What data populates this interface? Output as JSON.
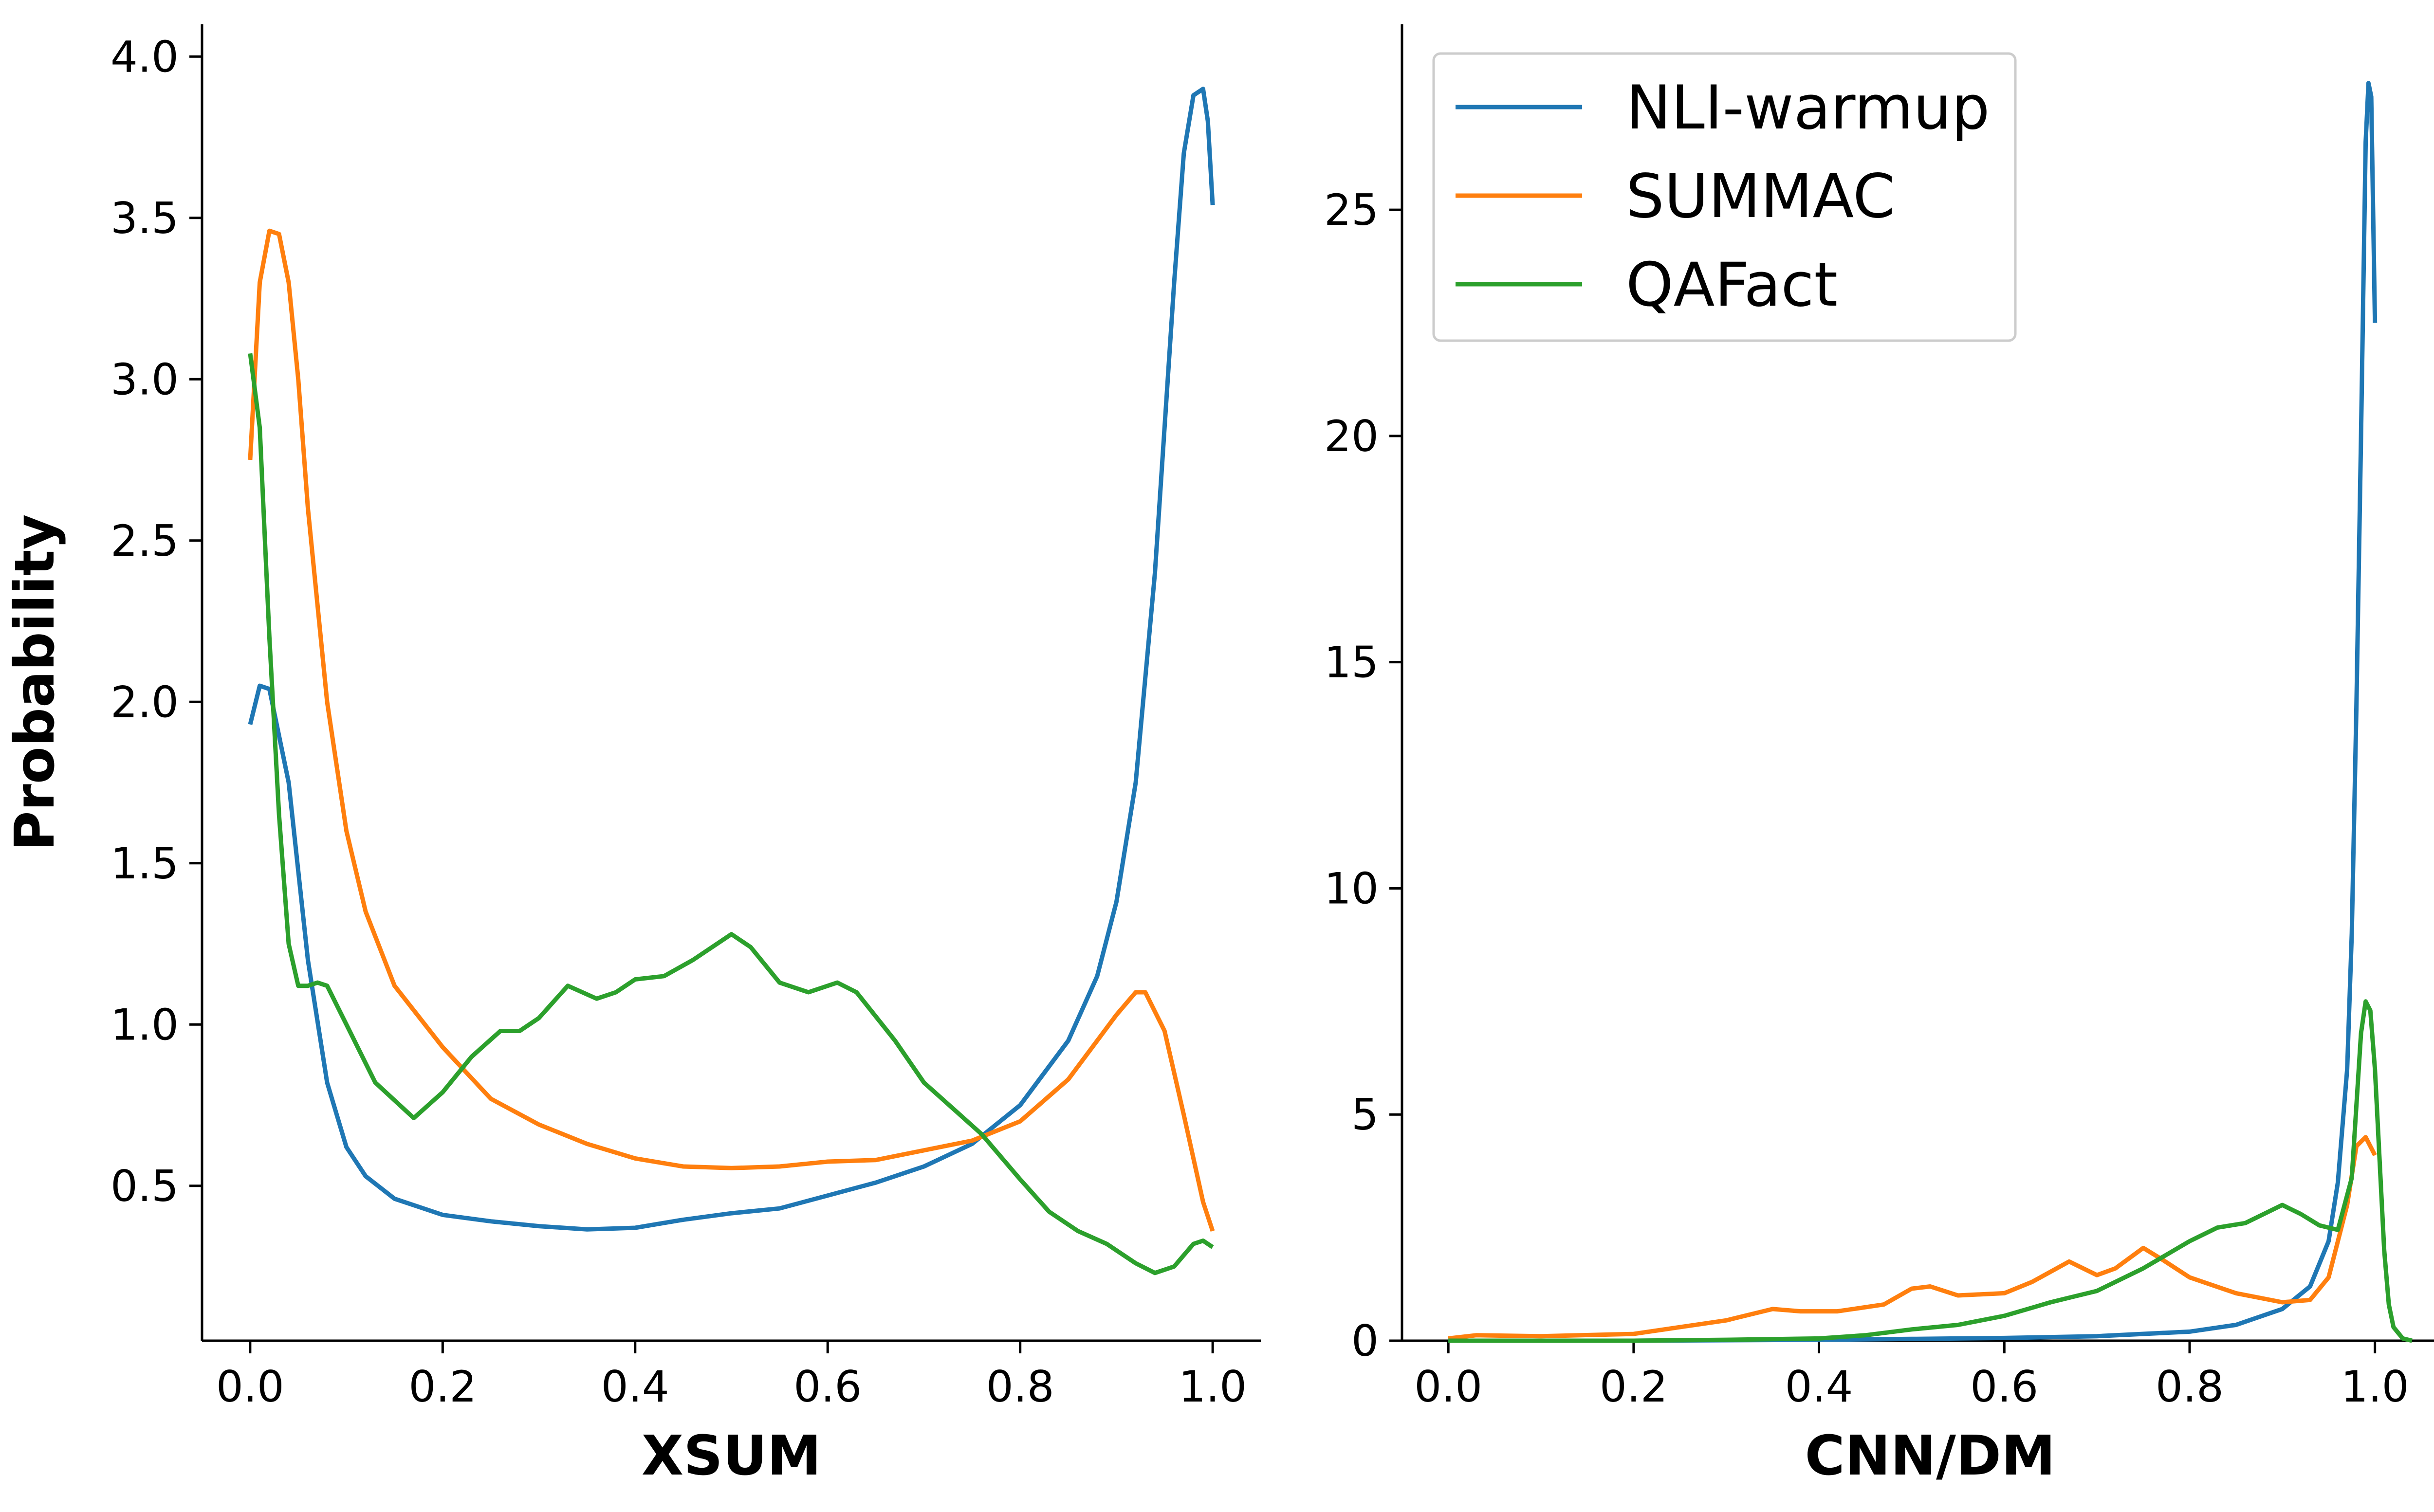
{
  "legend": {
    "placement": "top-left of right panel",
    "entries": [
      {
        "name": "NLI-warmup",
        "color": "#1f77b4"
      },
      {
        "name": "SUMMAC",
        "color": "#ff7f0e"
      },
      {
        "name": "QAFact",
        "color": "#2ca02c"
      }
    ]
  },
  "chart_data": [
    {
      "type": "line",
      "xlabel": "XSUM",
      "ylabel": "Probability",
      "xlim": [
        -0.05,
        1.05
      ],
      "ylim": [
        0.02,
        4.1
      ],
      "xticks": [
        "0.0",
        "0.2",
        "0.4",
        "0.6",
        "0.8",
        "1.0"
      ],
      "xtick_values": [
        0.0,
        0.2,
        0.4,
        0.6,
        0.8,
        1.0
      ],
      "yticks": [
        "0.5",
        "1.0",
        "1.5",
        "2.0",
        "2.5",
        "3.0",
        "3.5",
        "4.0"
      ],
      "ytick_values": [
        0.5,
        1.0,
        1.5,
        2.0,
        2.5,
        3.0,
        3.5,
        4.0
      ],
      "series": [
        {
          "name": "NLI-warmup",
          "color": "#1f77b4",
          "x": [
            0.0,
            0.01,
            0.02,
            0.04,
            0.06,
            0.08,
            0.1,
            0.12,
            0.15,
            0.2,
            0.25,
            0.3,
            0.35,
            0.4,
            0.45,
            0.5,
            0.55,
            0.6,
            0.65,
            0.7,
            0.75,
            0.8,
            0.85,
            0.88,
            0.9,
            0.92,
            0.94,
            0.96,
            0.97,
            0.98,
            0.99,
            0.995,
            1.0
          ],
          "y": [
            1.93,
            2.05,
            2.04,
            1.75,
            1.2,
            0.82,
            0.62,
            0.53,
            0.46,
            0.41,
            0.39,
            0.375,
            0.365,
            0.37,
            0.395,
            0.415,
            0.43,
            0.47,
            0.51,
            0.56,
            0.63,
            0.75,
            0.95,
            1.15,
            1.38,
            1.75,
            2.4,
            3.3,
            3.7,
            3.88,
            3.9,
            3.8,
            3.54
          ]
        },
        {
          "name": "SUMMAC",
          "color": "#ff7f0e",
          "x": [
            0.0,
            0.01,
            0.02,
            0.03,
            0.04,
            0.05,
            0.06,
            0.08,
            0.1,
            0.12,
            0.15,
            0.2,
            0.25,
            0.3,
            0.35,
            0.4,
            0.45,
            0.5,
            0.55,
            0.6,
            0.65,
            0.7,
            0.75,
            0.8,
            0.85,
            0.88,
            0.9,
            0.92,
            0.93,
            0.95,
            0.97,
            0.99,
            1.0
          ],
          "y": [
            2.75,
            3.3,
            3.46,
            3.45,
            3.3,
            3.0,
            2.6,
            2.0,
            1.6,
            1.35,
            1.12,
            0.93,
            0.77,
            0.69,
            0.63,
            0.585,
            0.56,
            0.555,
            0.56,
            0.575,
            0.58,
            0.61,
            0.64,
            0.7,
            0.83,
            0.95,
            1.03,
            1.1,
            1.1,
            0.98,
            0.72,
            0.45,
            0.36
          ]
        },
        {
          "name": "QAFact",
          "color": "#2ca02c",
          "x": [
            0.0,
            0.01,
            0.02,
            0.03,
            0.04,
            0.05,
            0.06,
            0.07,
            0.08,
            0.1,
            0.13,
            0.17,
            0.2,
            0.23,
            0.26,
            0.28,
            0.3,
            0.33,
            0.36,
            0.38,
            0.4,
            0.43,
            0.46,
            0.5,
            0.52,
            0.55,
            0.58,
            0.61,
            0.63,
            0.67,
            0.7,
            0.73,
            0.76,
            0.8,
            0.83,
            0.86,
            0.89,
            0.92,
            0.94,
            0.96,
            0.98,
            0.99,
            1.0
          ],
          "y": [
            3.08,
            2.85,
            2.2,
            1.65,
            1.25,
            1.12,
            1.12,
            1.13,
            1.12,
            1.0,
            0.82,
            0.71,
            0.79,
            0.9,
            0.98,
            0.98,
            1.02,
            1.12,
            1.08,
            1.1,
            1.14,
            1.15,
            1.2,
            1.28,
            1.24,
            1.13,
            1.1,
            1.13,
            1.1,
            0.95,
            0.82,
            0.74,
            0.66,
            0.52,
            0.42,
            0.36,
            0.32,
            0.26,
            0.23,
            0.25,
            0.32,
            0.33,
            0.31
          ]
        }
      ]
    },
    {
      "type": "line",
      "xlabel": "CNN/DM",
      "ylabel": "",
      "xlim": [
        -0.05,
        1.09
      ],
      "ylim": [
        0,
        29.1
      ],
      "xticks": [
        "0.0",
        "0.2",
        "0.4",
        "0.6",
        "0.8",
        "1.0"
      ],
      "xtick_values": [
        0.0,
        0.2,
        0.4,
        0.6,
        0.8,
        1.0
      ],
      "yticks": [
        "0",
        "5",
        "10",
        "15",
        "20",
        "25"
      ],
      "ytick_values": [
        0,
        5,
        10,
        15,
        20,
        25
      ],
      "series": [
        {
          "name": "NLI-warmup",
          "color": "#1f77b4",
          "x": [
            0.0,
            0.2,
            0.4,
            0.5,
            0.6,
            0.7,
            0.8,
            0.85,
            0.9,
            0.93,
            0.95,
            0.96,
            0.97,
            0.975,
            0.98,
            0.985,
            0.99,
            0.993,
            0.996,
            0.998,
            1.0
          ],
          "y": [
            0.0,
            0.0,
            0.02,
            0.04,
            0.06,
            0.1,
            0.2,
            0.35,
            0.7,
            1.2,
            2.2,
            3.5,
            6.0,
            9.0,
            14.0,
            20.0,
            26.5,
            27.8,
            27.5,
            25.0,
            22.5
          ]
        },
        {
          "name": "SUMMAC",
          "color": "#ff7f0e",
          "x": [
            0.0,
            0.03,
            0.1,
            0.2,
            0.25,
            0.3,
            0.35,
            0.38,
            0.42,
            0.47,
            0.5,
            0.52,
            0.55,
            0.6,
            0.63,
            0.67,
            0.7,
            0.72,
            0.75,
            0.77,
            0.8,
            0.85,
            0.9,
            0.93,
            0.95,
            0.97,
            0.98,
            0.99,
            1.0
          ],
          "y": [
            0.05,
            0.12,
            0.1,
            0.15,
            0.3,
            0.45,
            0.7,
            0.65,
            0.65,
            0.8,
            1.15,
            1.2,
            1.0,
            1.05,
            1.3,
            1.75,
            1.45,
            1.6,
            2.05,
            1.8,
            1.4,
            1.05,
            0.85,
            0.9,
            1.4,
            3.0,
            4.3,
            4.5,
            4.1
          ]
        },
        {
          "name": "QAFact",
          "color": "#2ca02c",
          "x": [
            0.0,
            0.2,
            0.3,
            0.4,
            0.45,
            0.5,
            0.55,
            0.6,
            0.65,
            0.7,
            0.75,
            0.8,
            0.83,
            0.86,
            0.88,
            0.9,
            0.92,
            0.94,
            0.96,
            0.975,
            0.985,
            0.99,
            0.995,
            1.0,
            1.005,
            1.01,
            1.015,
            1.02,
            1.03,
            1.04
          ],
          "y": [
            0.0,
            0.0,
            0.02,
            0.05,
            0.12,
            0.25,
            0.35,
            0.55,
            0.85,
            1.1,
            1.6,
            2.2,
            2.5,
            2.6,
            2.8,
            3.0,
            2.8,
            2.55,
            2.45,
            3.6,
            6.8,
            7.5,
            7.3,
            6.0,
            4.0,
            2.0,
            0.8,
            0.3,
            0.05,
            0.0
          ]
        }
      ]
    }
  ]
}
